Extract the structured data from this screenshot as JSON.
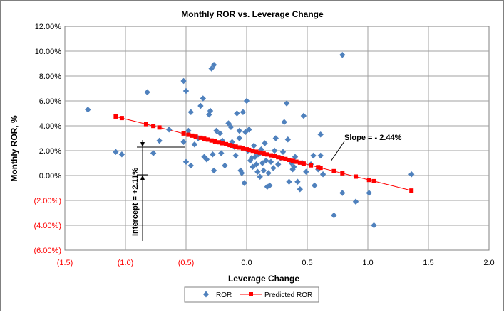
{
  "colors": {
    "ror": "#4F81BD",
    "predicted": "#FF0000",
    "negative_tick": "#FF0000",
    "grid": "#A0A0A0",
    "axis_text": "#000000"
  },
  "chart_data": {
    "type": "scatter",
    "title": "Monthly ROR vs. Leverage  Change",
    "xlabel": "Leverage Change",
    "ylabel": "Monthly ROR, %",
    "xlim": [
      -1.5,
      2.0
    ],
    "ylim": [
      -6,
      12
    ],
    "x_ticks": [
      {
        "v": -1.5,
        "label": "(1.5)",
        "neg": true
      },
      {
        "v": -1.0,
        "label": "(1.0)",
        "neg": true
      },
      {
        "v": -0.5,
        "label": "(0.5)",
        "neg": true
      },
      {
        "v": 0.0,
        "label": "0.0",
        "neg": false
      },
      {
        "v": 0.5,
        "label": "0.5",
        "neg": false
      },
      {
        "v": 1.0,
        "label": "1.0",
        "neg": false
      },
      {
        "v": 1.5,
        "label": "1.5",
        "neg": false
      },
      {
        "v": 2.0,
        "label": "2.0",
        "neg": false
      }
    ],
    "y_ticks": [
      {
        "v": 12,
        "label": "12.00%",
        "neg": false
      },
      {
        "v": 10,
        "label": "10.00%",
        "neg": false
      },
      {
        "v": 8,
        "label": "8.00%",
        "neg": false
      },
      {
        "v": 6,
        "label": "6.00%",
        "neg": false
      },
      {
        "v": 4,
        "label": "4.00%",
        "neg": false
      },
      {
        "v": 2,
        "label": "2.00%",
        "neg": false
      },
      {
        "v": 0,
        "label": "0.00%",
        "neg": false
      },
      {
        "v": -2,
        "label": "(2.00%)",
        "neg": true
      },
      {
        "v": -4,
        "label": "(4.00%)",
        "neg": true
      },
      {
        "v": -6,
        "label": "(6.00%)",
        "neg": true
      }
    ],
    "grid": true,
    "legend_position": "bottom-center",
    "series": [
      {
        "name": "ROR",
        "marker": "diamond",
        "points": [
          [
            -1.31,
            5.3
          ],
          [
            -1.08,
            1.9
          ],
          [
            -1.03,
            1.7
          ],
          [
            -0.82,
            6.7
          ],
          [
            -0.77,
            1.8
          ],
          [
            -0.72,
            2.8
          ],
          [
            -0.64,
            3.7
          ],
          [
            -0.52,
            7.6
          ],
          [
            -0.5,
            6.8
          ],
          [
            -0.52,
            2.7
          ],
          [
            -0.48,
            3.6
          ],
          [
            -0.46,
            5.1
          ],
          [
            -0.5,
            1.1
          ],
          [
            -0.46,
            0.8
          ],
          [
            -0.43,
            2.5
          ],
          [
            -0.4,
            3.0
          ],
          [
            -0.38,
            5.6
          ],
          [
            -0.36,
            6.2
          ],
          [
            -0.35,
            1.5
          ],
          [
            -0.33,
            1.3
          ],
          [
            -0.31,
            4.9
          ],
          [
            -0.3,
            5.2
          ],
          [
            -0.29,
            8.6
          ],
          [
            -0.27,
            8.9
          ],
          [
            -0.28,
            1.7
          ],
          [
            -0.27,
            0.4
          ],
          [
            -0.25,
            3.6
          ],
          [
            -0.22,
            3.4
          ],
          [
            -0.2,
            2.8
          ],
          [
            -0.21,
            1.8
          ],
          [
            -0.18,
            0.8
          ],
          [
            -0.15,
            4.2
          ],
          [
            -0.13,
            3.9
          ],
          [
            -0.12,
            2.7
          ],
          [
            -0.1,
            2.3
          ],
          [
            -0.09,
            1.6
          ],
          [
            -0.08,
            5.0
          ],
          [
            -0.06,
            3.6
          ],
          [
            -0.06,
            3.0
          ],
          [
            -0.05,
            0.4
          ],
          [
            -0.04,
            0.2
          ],
          [
            -0.02,
            -0.6
          ],
          [
            -0.03,
            5.1
          ],
          [
            -0.01,
            3.5
          ],
          [
            0.0,
            6.0
          ],
          [
            0.01,
            2.0
          ],
          [
            0.02,
            3.7
          ],
          [
            0.03,
            1.2
          ],
          [
            0.04,
            1.4
          ],
          [
            0.05,
            0.7
          ],
          [
            0.06,
            2.4
          ],
          [
            0.07,
            1.5
          ],
          [
            0.08,
            0.9
          ],
          [
            0.09,
            0.3
          ],
          [
            0.1,
            1.7
          ],
          [
            0.11,
            -0.1
          ],
          [
            0.12,
            2.1
          ],
          [
            0.13,
            1.0
          ],
          [
            0.14,
            0.4
          ],
          [
            0.15,
            2.6
          ],
          [
            0.16,
            1.2
          ],
          [
            0.17,
            -0.9
          ],
          [
            0.18,
            0.2
          ],
          [
            0.19,
            -0.8
          ],
          [
            0.2,
            1.1
          ],
          [
            0.22,
            0.6
          ],
          [
            0.23,
            2.0
          ],
          [
            0.24,
            3.0
          ],
          [
            0.26,
            0.9
          ],
          [
            0.28,
            1.4
          ],
          [
            0.3,
            1.9
          ],
          [
            0.31,
            4.3
          ],
          [
            0.33,
            5.8
          ],
          [
            0.34,
            2.9
          ],
          [
            0.35,
            -0.5
          ],
          [
            0.37,
            1.0
          ],
          [
            0.38,
            0.5
          ],
          [
            0.39,
            0.7
          ],
          [
            0.4,
            1.5
          ],
          [
            0.42,
            -0.5
          ],
          [
            0.44,
            -1.1
          ],
          [
            0.46,
            1.0
          ],
          [
            0.47,
            4.8
          ],
          [
            0.49,
            0.3
          ],
          [
            0.53,
            0.9
          ],
          [
            0.55,
            1.6
          ],
          [
            0.56,
            -0.8
          ],
          [
            0.59,
            0.5
          ],
          [
            0.61,
            1.6
          ],
          [
            0.61,
            3.3
          ],
          [
            0.63,
            0.1
          ],
          [
            0.72,
            -3.2
          ],
          [
            0.79,
            -1.4
          ],
          [
            0.79,
            9.7
          ],
          [
            0.9,
            -2.1
          ],
          [
            1.01,
            -1.4
          ],
          [
            1.05,
            -4.0
          ],
          [
            1.36,
            0.1
          ]
        ]
      },
      {
        "name": "Predicted ROR",
        "marker": "square",
        "line": true,
        "intercept": 2.11,
        "slope": -2.44,
        "x": [
          -1.08,
          -1.03,
          -0.83,
          -0.77,
          -0.72,
          -0.52,
          -0.48,
          -0.45,
          -0.42,
          -0.38,
          -0.35,
          -0.32,
          -0.29,
          -0.26,
          -0.23,
          -0.2,
          -0.17,
          -0.14,
          -0.12,
          -0.09,
          -0.06,
          -0.03,
          0.0,
          0.02,
          0.05,
          0.08,
          0.11,
          0.14,
          0.17,
          0.2,
          0.23,
          0.26,
          0.29,
          0.32,
          0.35,
          0.38,
          0.41,
          0.44,
          0.47,
          0.53,
          0.59,
          0.61,
          0.72,
          0.79,
          0.9,
          1.01,
          1.05,
          1.36
        ]
      }
    ],
    "annotations": {
      "slope": "Slope = - 2.44%",
      "intercept": "Intercept = +2.11%"
    }
  }
}
